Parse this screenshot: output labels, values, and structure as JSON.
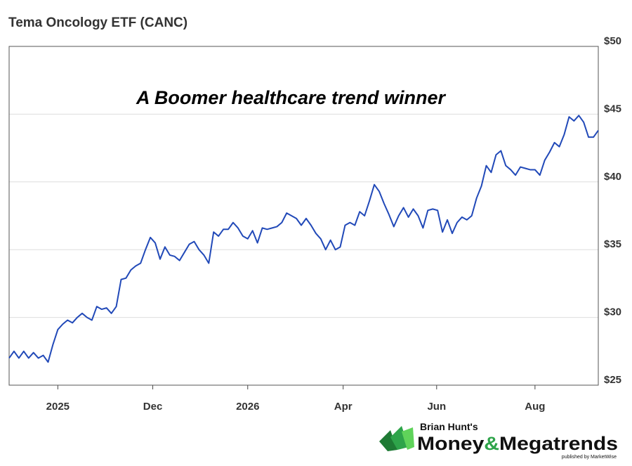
{
  "chart_data": {
    "type": "line",
    "title": "Tema Oncology ETF (CANC)",
    "annotation": "A Boomer healthcare trend winner",
    "series": [
      {
        "color": "#2149b8",
        "values": [
          27.0,
          27.5,
          27.0,
          27.5,
          27.0,
          27.4,
          27.0,
          27.2,
          26.7,
          28.0,
          29.1,
          29.5,
          29.8,
          29.6,
          30.0,
          30.3,
          30.0,
          29.8,
          30.8,
          30.6,
          30.7,
          30.3,
          30.8,
          32.8,
          32.9,
          33.5,
          33.8,
          34.0,
          35.0,
          35.9,
          35.5,
          34.3,
          35.2,
          34.6,
          34.5,
          34.2,
          34.8,
          35.4,
          35.6,
          35.0,
          34.6,
          34.0,
          36.3,
          36.0,
          36.5,
          36.5,
          37.0,
          36.6,
          36.0,
          35.8,
          36.4,
          35.5,
          36.6,
          36.5,
          36.6,
          36.7,
          37.0,
          37.7,
          37.5,
          37.3,
          36.8,
          37.3,
          36.8,
          36.2,
          35.8,
          35.0,
          35.7,
          35.0,
          35.2,
          36.8,
          37.0,
          36.8,
          37.8,
          37.5,
          38.6,
          39.8,
          39.3,
          38.4,
          37.6,
          36.7,
          37.5,
          38.1,
          37.4,
          38.0,
          37.5,
          36.6,
          37.9,
          38.0,
          37.9,
          36.3,
          37.2,
          36.2,
          37.0,
          37.4,
          37.2,
          37.5,
          38.8,
          39.7,
          41.2,
          40.7,
          42.0,
          42.3,
          41.2,
          40.9,
          40.5,
          41.1,
          41.0,
          40.9,
          40.9,
          40.5,
          41.6,
          42.2,
          42.9,
          42.6,
          43.5,
          44.8,
          44.5,
          44.9,
          44.4,
          43.3,
          43.3,
          43.8
        ]
      }
    ],
    "xlim": [
      0,
      121
    ],
    "xticks": [
      {
        "value": 10,
        "label": "2025"
      },
      {
        "value": 29.5,
        "label": "Dec"
      },
      {
        "value": 49,
        "label": "2026"
      },
      {
        "value": 68.6,
        "label": "Apr"
      },
      {
        "value": 87.8,
        "label": "Jun"
      },
      {
        "value": 108,
        "label": "Aug"
      }
    ],
    "ylim": [
      25,
      50
    ],
    "yticks": [
      {
        "value": 25,
        "label": "$25"
      },
      {
        "value": 30,
        "label": "$30"
      },
      {
        "value": 35,
        "label": "$35"
      },
      {
        "value": 40,
        "label": "$40"
      },
      {
        "value": 45,
        "label": "$45"
      },
      {
        "value": 50,
        "label": "$50"
      }
    ],
    "grid": true
  },
  "logo": {
    "byline": "Brian Hunt's",
    "money": "Money",
    "amp": "&",
    "megatrends": "Megatrends",
    "publisher": "published by MarketWise"
  }
}
